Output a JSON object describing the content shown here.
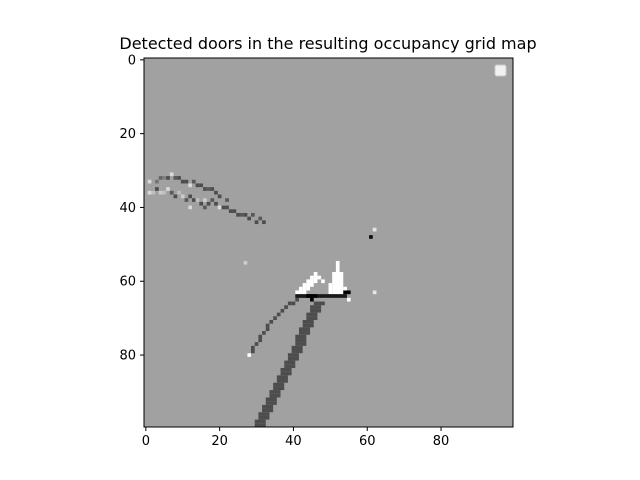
{
  "chart_data": {
    "type": "heatmap",
    "title": "Detected doors in the resulting occupancy grid map",
    "xlabel": "",
    "ylabel": "",
    "grid_size": [
      100,
      100
    ],
    "xlim": [
      -0.5,
      99.5
    ],
    "ylim": [
      99.5,
      -0.5
    ],
    "x_ticks": [
      0,
      20,
      40,
      60,
      80
    ],
    "y_ticks": [
      0,
      20,
      40,
      60,
      80
    ],
    "colormap": "gray",
    "background_value": 0.63,
    "legend": {
      "placement": "top-right",
      "entries": []
    },
    "cells": [
      {
        "x": 1,
        "y": 33,
        "v": 0.85
      },
      {
        "x": 3,
        "y": 33,
        "v": 0.45
      },
      {
        "x": 4,
        "y": 32,
        "v": 0.4
      },
      {
        "x": 5,
        "y": 32,
        "v": 0.5
      },
      {
        "x": 6,
        "y": 32,
        "v": 0.3
      },
      {
        "x": 7,
        "y": 31,
        "v": 0.85
      },
      {
        "x": 8,
        "y": 32,
        "v": 0.35
      },
      {
        "x": 9,
        "y": 32,
        "v": 0.3
      },
      {
        "x": 10,
        "y": 33,
        "v": 0.3
      },
      {
        "x": 11,
        "y": 33,
        "v": 0.3
      },
      {
        "x": 12,
        "y": 34,
        "v": 0.85
      },
      {
        "x": 13,
        "y": 33,
        "v": 0.35
      },
      {
        "x": 14,
        "y": 34,
        "v": 0.3
      },
      {
        "x": 15,
        "y": 34,
        "v": 0.3
      },
      {
        "x": 16,
        "y": 35,
        "v": 0.3
      },
      {
        "x": 17,
        "y": 35,
        "v": 0.35
      },
      {
        "x": 18,
        "y": 35,
        "v": 0.3
      },
      {
        "x": 19,
        "y": 36,
        "v": 0.3
      },
      {
        "x": 20,
        "y": 37,
        "v": 0.3
      },
      {
        "x": 1,
        "y": 36,
        "v": 0.85
      },
      {
        "x": 2,
        "y": 36,
        "v": 0.75
      },
      {
        "x": 3,
        "y": 35,
        "v": 0.3
      },
      {
        "x": 4,
        "y": 36,
        "v": 0.8
      },
      {
        "x": 5,
        "y": 36,
        "v": 0.75
      },
      {
        "x": 6,
        "y": 35,
        "v": 0.85
      },
      {
        "x": 7,
        "y": 36,
        "v": 0.35
      },
      {
        "x": 8,
        "y": 37,
        "v": 0.3
      },
      {
        "x": 9,
        "y": 36,
        "v": 0.75
      },
      {
        "x": 10,
        "y": 37,
        "v": 0.8
      },
      {
        "x": 11,
        "y": 38,
        "v": 0.35
      },
      {
        "x": 12,
        "y": 37,
        "v": 0.3
      },
      {
        "x": 13,
        "y": 38,
        "v": 0.3
      },
      {
        "x": 14,
        "y": 38,
        "v": 0.75
      },
      {
        "x": 15,
        "y": 39,
        "v": 0.3
      },
      {
        "x": 16,
        "y": 38,
        "v": 0.8
      },
      {
        "x": 17,
        "y": 39,
        "v": 0.3
      },
      {
        "x": 18,
        "y": 38,
        "v": 0.35
      },
      {
        "x": 19,
        "y": 39,
        "v": 0.3
      },
      {
        "x": 20,
        "y": 40,
        "v": 0.85
      },
      {
        "x": 21,
        "y": 40,
        "v": 0.3
      },
      {
        "x": 22,
        "y": 40,
        "v": 0.3
      },
      {
        "x": 23,
        "y": 41,
        "v": 0.3
      },
      {
        "x": 24,
        "y": 41,
        "v": 0.3
      },
      {
        "x": 25,
        "y": 42,
        "v": 0.3
      },
      {
        "x": 26,
        "y": 42,
        "v": 0.35
      },
      {
        "x": 27,
        "y": 42,
        "v": 0.3
      },
      {
        "x": 28,
        "y": 43,
        "v": 0.3
      },
      {
        "x": 29,
        "y": 42,
        "v": 0.35
      },
      {
        "x": 30,
        "y": 44,
        "v": 0.3
      },
      {
        "x": 31,
        "y": 43,
        "v": 0.35
      },
      {
        "x": 32,
        "y": 44,
        "v": 0.3
      },
      {
        "x": 12,
        "y": 40,
        "v": 0.85
      },
      {
        "x": 16,
        "y": 40,
        "v": 0.35
      },
      {
        "x": 22,
        "y": 38,
        "v": 0.35
      },
      {
        "x": 27,
        "y": 55,
        "v": 0.8
      },
      {
        "x": 61,
        "y": 48,
        "v": 0.05
      },
      {
        "x": 62,
        "y": 46,
        "v": 0.9
      },
      {
        "x": 62,
        "y": 63,
        "v": 0.9
      }
    ],
    "strips": [
      {
        "v": 0.3,
        "points": [
          [
            28,
            80
          ],
          [
            29,
            79
          ],
          [
            30,
            77
          ],
          [
            31,
            76
          ],
          [
            32,
            74
          ],
          [
            33,
            73
          ],
          [
            34,
            71
          ],
          [
            35,
            70
          ],
          [
            36,
            69
          ],
          [
            37,
            68
          ],
          [
            38,
            67
          ],
          [
            39,
            66
          ],
          [
            40,
            66
          ],
          [
            41,
            65
          ],
          [
            42,
            64
          ],
          [
            43,
            64
          ],
          [
            44,
            64
          ]
        ],
        "width": 1
      },
      {
        "v": 0.3,
        "points": [
          [
            30,
            99
          ],
          [
            31,
            97
          ],
          [
            32,
            95
          ],
          [
            33,
            93
          ],
          [
            34,
            91
          ],
          [
            35,
            89
          ],
          [
            36,
            87
          ],
          [
            37,
            85
          ],
          [
            38,
            83
          ],
          [
            39,
            81
          ],
          [
            40,
            79
          ],
          [
            41,
            77
          ],
          [
            42,
            74
          ],
          [
            43,
            72
          ],
          [
            44,
            70
          ],
          [
            45,
            68
          ],
          [
            46,
            66
          ]
        ],
        "width": 3
      }
    ],
    "white_regions": [
      {
        "x": 41,
        "y": 63,
        "w": 1,
        "h": 1
      },
      {
        "x": 42,
        "y": 62,
        "w": 1,
        "h": 2
      },
      {
        "x": 43,
        "y": 61,
        "w": 1,
        "h": 3
      },
      {
        "x": 44,
        "y": 60,
        "w": 1,
        "h": 3
      },
      {
        "x": 45,
        "y": 59,
        "w": 1,
        "h": 3
      },
      {
        "x": 46,
        "y": 58,
        "w": 1,
        "h": 3
      },
      {
        "x": 47,
        "y": 59,
        "w": 1,
        "h": 1
      },
      {
        "x": 48,
        "y": 60,
        "w": 1,
        "h": 1
      },
      {
        "x": 51,
        "y": 58,
        "w": 3,
        "h": 6
      },
      {
        "x": 52,
        "y": 55,
        "w": 1,
        "h": 3
      },
      {
        "x": 50,
        "y": 61,
        "w": 1,
        "h": 3
      },
      {
        "x": 54,
        "y": 62,
        "w": 1,
        "h": 2
      },
      {
        "x": 28,
        "y": 80,
        "w": 1,
        "h": 1
      },
      {
        "x": 55,
        "y": 65,
        "w": 1,
        "h": 1
      }
    ],
    "black_cells": [
      {
        "x": 44,
        "y": 64,
        "w": 3,
        "h": 1
      },
      {
        "x": 45,
        "y": 65,
        "w": 1,
        "h": 1
      },
      {
        "x": 54,
        "y": 63,
        "w": 2,
        "h": 1
      }
    ],
    "line_cells": [
      {
        "x": 41,
        "y": 64,
        "w": 14,
        "h": 1,
        "v": 0.1
      }
    ]
  }
}
